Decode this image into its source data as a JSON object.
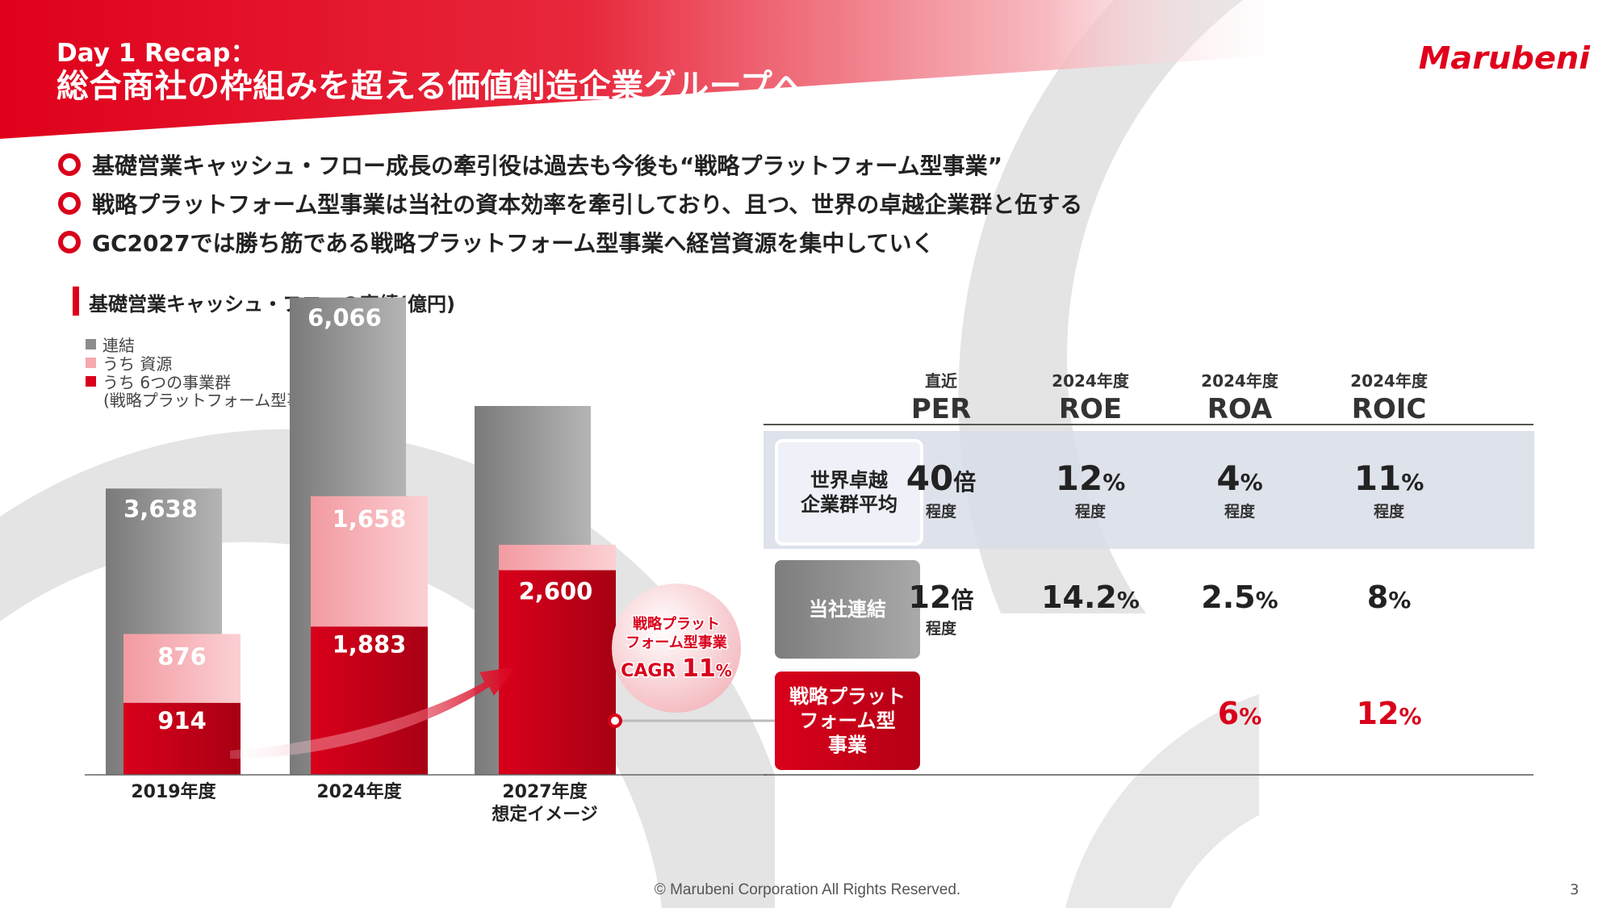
{
  "header": {
    "title_line1": "Day 1 Recap：",
    "title_line2": "総合商社の枠組みを超える価値創造企業グループへ",
    "logo_text": "Marubeni"
  },
  "bullets": [
    "基礎営業キャッシュ・フロー成長の牽引役は過去も今後も“戦略プラットフォーム型事業”",
    "戦略プラットフォーム型事業は当社の資本効率を牽引しており、且つ、世界の卓越企業群と伍する",
    "GC2027では勝ち筋である戦略プラットフォーム型事業へ経営資源を集中していく"
  ],
  "chart_data": {
    "type": "bar",
    "title": "基礎営業キャッシュ・フローの実績(億円)",
    "categories": [
      "2019年度",
      "2024年度",
      "2027年度\n想定イメージ"
    ],
    "category_lines": [
      [
        "2019年度"
      ],
      [
        "2024年度"
      ],
      [
        "2027年度",
        "想定イメージ"
      ]
    ],
    "series": [
      {
        "name": "連結",
        "values": [
          3638,
          6066,
          null
        ],
        "labels": [
          "3,638",
          "6,066",
          ""
        ],
        "color": "#8c8c8c"
      },
      {
        "name": "うち 資源",
        "values": [
          876,
          1658,
          null
        ],
        "labels": [
          "876",
          "1,658",
          ""
        ],
        "color": "#f5a8ad"
      },
      {
        "name": "うち 6つの事業群\n(戦略プラットフォーム型事業)",
        "values": [
          914,
          1883,
          2600
        ],
        "labels": [
          "914",
          "1,883",
          "2,600"
        ],
        "color": "#d9001b"
      }
    ],
    "legend_lines": [
      [
        "連結"
      ],
      [
        "うち 資源"
      ],
      [
        "うち 6つの事業群",
        "(戦略プラットフォーム型事業)"
      ]
    ],
    "legend_position": "top-left",
    "annotation": {
      "lines": [
        "戦略プラット",
        "フォーム型事業"
      ],
      "cagr_label": "CAGR",
      "cagr_value": "11",
      "cagr_unit": "%"
    },
    "ylim": [
      0,
      7500
    ]
  },
  "metrics_table": {
    "columns": [
      {
        "sub": "直近",
        "main": "PER"
      },
      {
        "sub": "2024年度",
        "main": "ROE"
      },
      {
        "sub": "2024年度",
        "main": "ROA"
      },
      {
        "sub": "2024年度",
        "main": "ROIC"
      }
    ],
    "rows": [
      {
        "label_lines": [
          "世界卓越",
          "企業群平均"
        ],
        "cells": [
          {
            "num": "40",
            "unit": "倍",
            "note": "程度"
          },
          {
            "num": "12",
            "unit": "%",
            "note": "程度"
          },
          {
            "num": "4",
            "unit": "%",
            "note": "程度"
          },
          {
            "num": "11",
            "unit": "%",
            "note": "程度"
          }
        ]
      },
      {
        "label_lines": [
          "当社連結"
        ],
        "cells": [
          {
            "num": "12",
            "unit": "倍",
            "note": "程度"
          },
          {
            "num": "14.2",
            "unit": "%",
            "note": ""
          },
          {
            "num": "2.5",
            "unit": "%",
            "note": ""
          },
          {
            "num": "8",
            "unit": "%",
            "note": ""
          }
        ]
      },
      {
        "label_lines": [
          "戦略プラット",
          "フォーム型",
          "事業"
        ],
        "cells": [
          {
            "num": "",
            "unit": "",
            "note": ""
          },
          {
            "num": "",
            "unit": "",
            "note": ""
          },
          {
            "num": "6",
            "unit": "%",
            "note": ""
          },
          {
            "num": "12",
            "unit": "%",
            "note": ""
          }
        ]
      }
    ]
  },
  "colors": {
    "brand_red": "#e0001b",
    "dark_red": "#c0001a",
    "gray_bar": "#8c8c8c",
    "pink_bar": "#f5a8ad",
    "table_band": "#d7dde8"
  },
  "footer": {
    "copyright": "© Marubeni Corporation All Rights Reserved.",
    "page_number": "3"
  }
}
